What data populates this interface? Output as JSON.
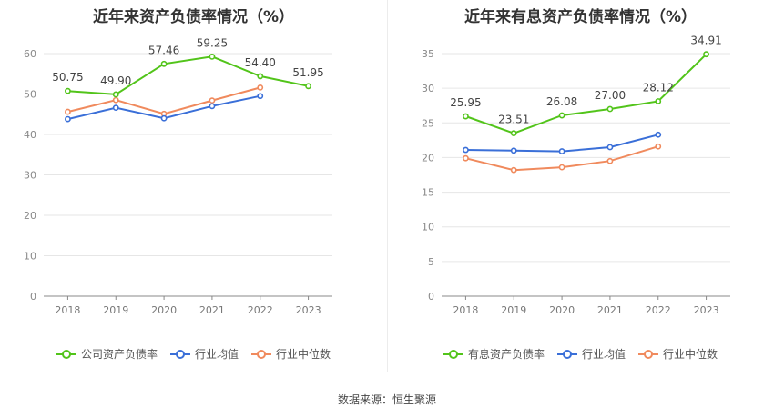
{
  "colors": {
    "company": "#52c41a",
    "avg": "#3a6fd8",
    "median": "#f08a5d",
    "grid": "#e6e6e6",
    "axis": "#888888"
  },
  "chart_data": [
    {
      "type": "line",
      "title": "近年来资产负债率情况（%）",
      "x": [
        "2018",
        "2019",
        "2020",
        "2021",
        "2022",
        "2023"
      ],
      "ylim": [
        0,
        60
      ],
      "yticks": [
        0,
        10,
        20,
        30,
        40,
        50,
        60
      ],
      "grid": true,
      "legend_position": "bottom",
      "series": [
        {
          "name": "公司资产负债率",
          "color": "#52c41a",
          "labels": true,
          "values": [
            50.75,
            49.9,
            57.46,
            59.25,
            54.4,
            51.95
          ]
        },
        {
          "name": "行业均值",
          "color": "#3a6fd8",
          "labels": false,
          "values": [
            43.8,
            46.6,
            44.0,
            47.0,
            49.5,
            null
          ]
        },
        {
          "name": "行业中位数",
          "color": "#f08a5d",
          "labels": false,
          "values": [
            45.6,
            48.5,
            45.1,
            48.4,
            51.6,
            null
          ]
        }
      ]
    },
    {
      "type": "line",
      "title": "近年来有息资产负债率情况（%）",
      "x": [
        "2018",
        "2019",
        "2020",
        "2021",
        "2022",
        "2023"
      ],
      "ylim": [
        0,
        35
      ],
      "yticks": [
        0,
        5,
        10,
        15,
        20,
        25,
        30,
        35
      ],
      "grid": true,
      "legend_position": "bottom",
      "series": [
        {
          "name": "有息资产负债率",
          "color": "#52c41a",
          "labels": true,
          "values": [
            25.95,
            23.51,
            26.08,
            27.0,
            28.12,
            34.91
          ]
        },
        {
          "name": "行业均值",
          "color": "#3a6fd8",
          "labels": false,
          "values": [
            21.1,
            21.0,
            20.9,
            21.5,
            23.3,
            null
          ]
        },
        {
          "name": "行业中位数",
          "color": "#f08a5d",
          "labels": false,
          "values": [
            19.9,
            18.2,
            18.6,
            19.5,
            21.6,
            null
          ]
        }
      ]
    }
  ],
  "source_text": "数据来源：恒生聚源"
}
